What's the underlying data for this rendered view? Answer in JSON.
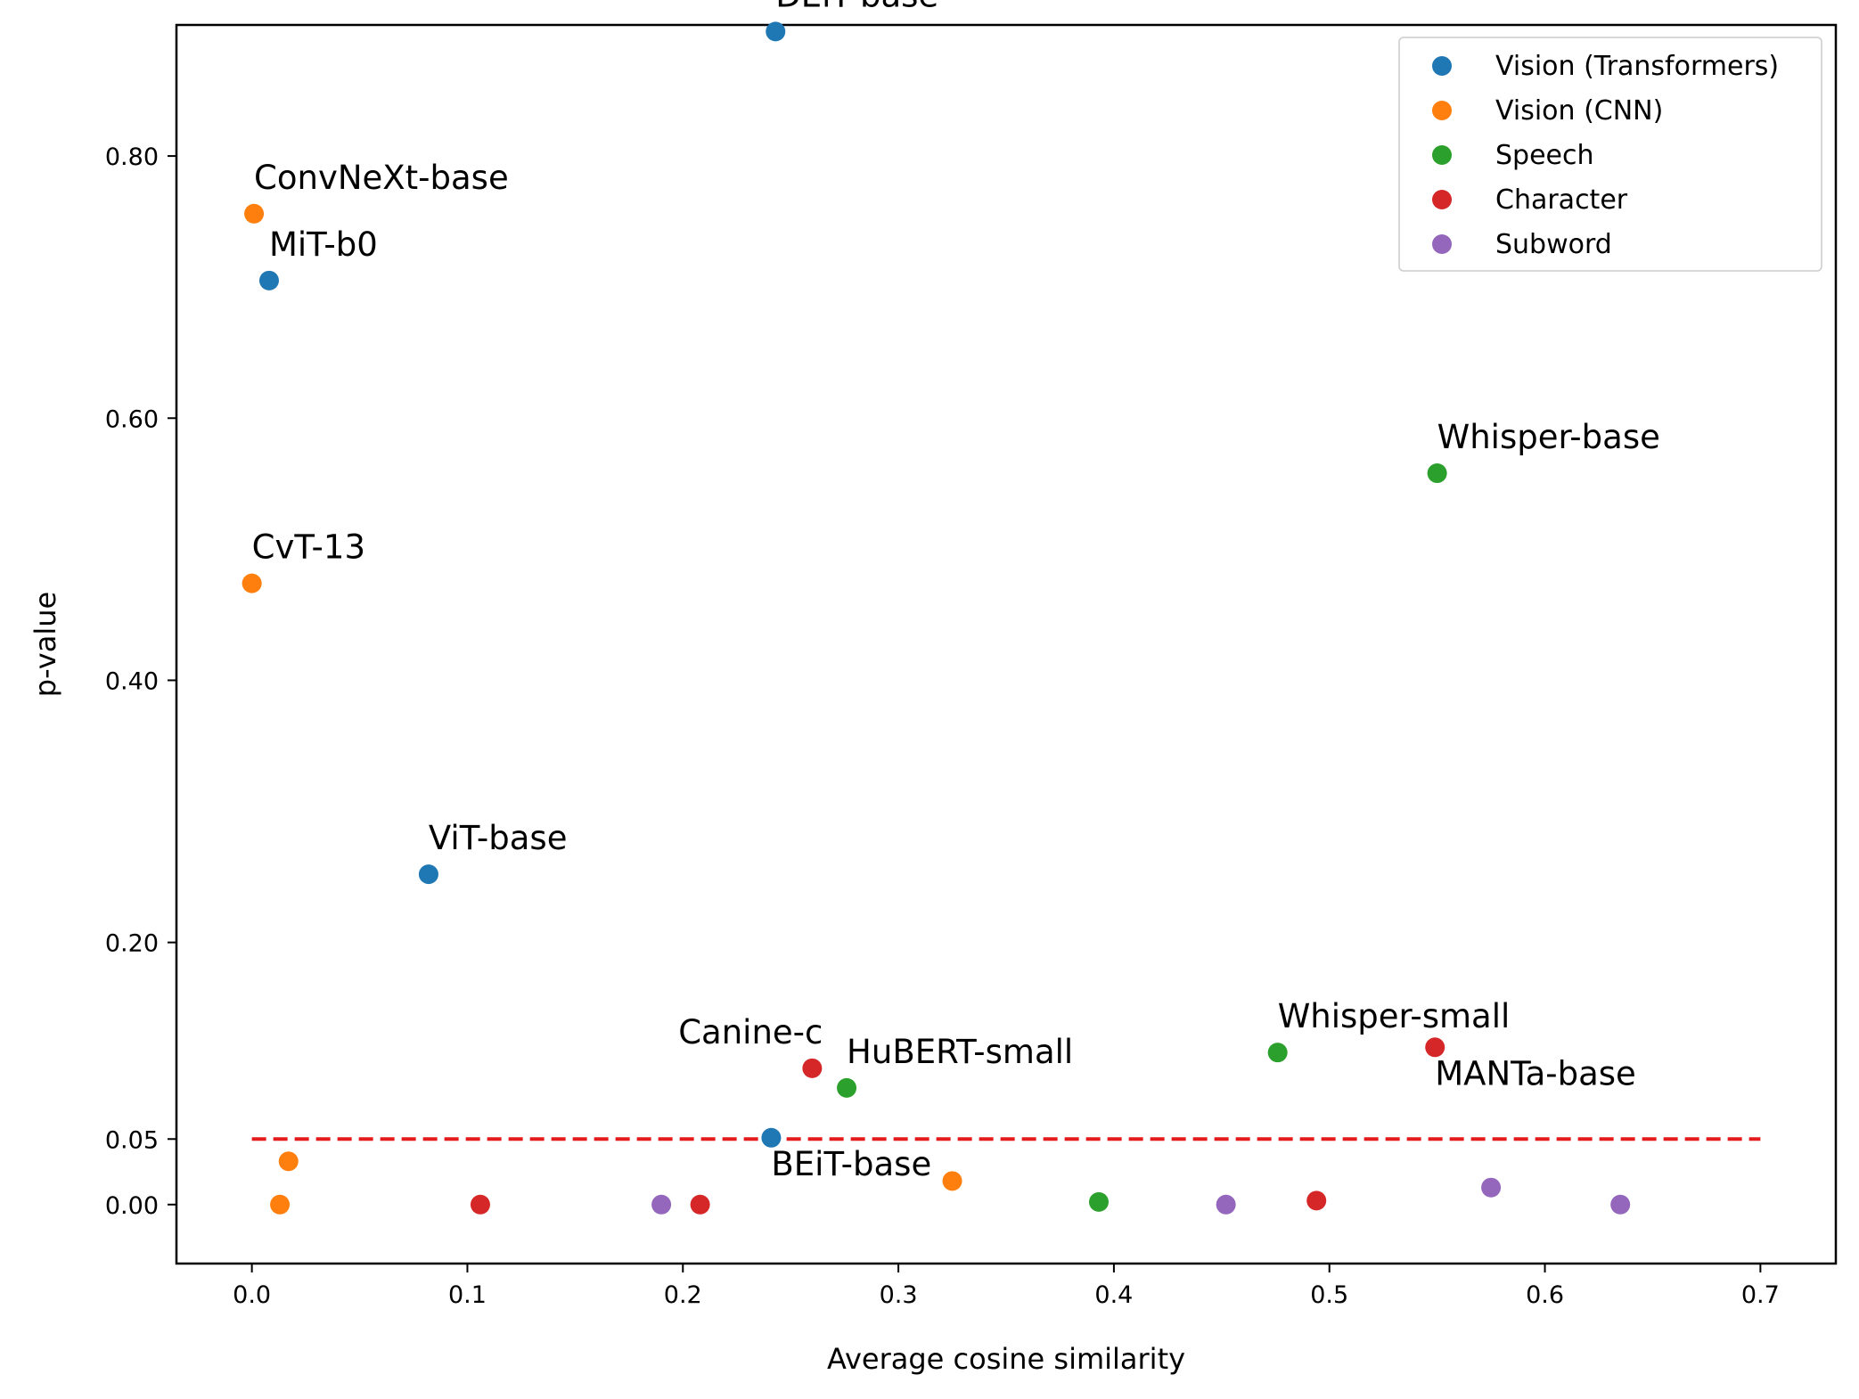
{
  "chart_data": {
    "type": "scatter",
    "xlabel": "Average cosine similarity",
    "ylabel": "p-value",
    "xlim": [
      -0.035,
      0.735
    ],
    "ylim": [
      -0.045,
      0.9
    ],
    "x_ticks": [
      0.0,
      0.1,
      0.2,
      0.3,
      0.4,
      0.5,
      0.6,
      0.7
    ],
    "x_tick_labels": [
      "0.0",
      "0.1",
      "0.2",
      "0.3",
      "0.4",
      "0.5",
      "0.6",
      "0.7"
    ],
    "y_ticks": [
      0.0,
      0.05,
      0.2,
      0.4,
      0.6,
      0.8
    ],
    "y_tick_labels": [
      "0.00",
      "0.05",
      "0.20",
      "0.40",
      "0.60",
      "0.80"
    ],
    "legend_position": "top-right",
    "threshold": {
      "y": 0.05,
      "x_range": [
        0.0,
        0.7
      ],
      "color": "#e41a1c",
      "style": "dashed"
    },
    "series": [
      {
        "name": "Vision (Transformers)",
        "color": "#1f77b4",
        "points": [
          {
            "x": 0.243,
            "y": 0.895,
            "label": "DEiT-base",
            "label_anchor": "above"
          },
          {
            "x": 0.008,
            "y": 0.705,
            "label": "MiT-b0",
            "label_anchor": "above"
          },
          {
            "x": 0.082,
            "y": 0.252,
            "label": "ViT-base",
            "label_anchor": "above"
          },
          {
            "x": 0.241,
            "y": 0.051,
            "label": "BEiT-base",
            "label_anchor": "below"
          }
        ]
      },
      {
        "name": "Vision (CNN)",
        "color": "#ff7f0e",
        "points": [
          {
            "x": 0.001,
            "y": 0.756,
            "label": "ConvNeXt-base",
            "label_anchor": "above"
          },
          {
            "x": 0.0,
            "y": 0.474,
            "label": "CvT-13",
            "label_anchor": "above"
          },
          {
            "x": 0.017,
            "y": 0.033,
            "label": ""
          },
          {
            "x": 0.013,
            "y": 0.0,
            "label": ""
          },
          {
            "x": 0.325,
            "y": 0.018,
            "label": ""
          }
        ]
      },
      {
        "name": "Speech",
        "color": "#2ca02c",
        "points": [
          {
            "x": 0.55,
            "y": 0.558,
            "label": "Whisper-base",
            "label_anchor": "above"
          },
          {
            "x": 0.476,
            "y": 0.116,
            "label": "Whisper-small",
            "label_anchor": "above"
          },
          {
            "x": 0.276,
            "y": 0.089,
            "label": "HuBERT-small",
            "label_anchor": "above"
          },
          {
            "x": 0.393,
            "y": 0.002,
            "label": ""
          }
        ]
      },
      {
        "name": "Character",
        "color": "#d62728",
        "points": [
          {
            "x": 0.26,
            "y": 0.104,
            "label": "Canine-c",
            "label_anchor": "above-left"
          },
          {
            "x": 0.549,
            "y": 0.12,
            "label": "MANTa-base",
            "label_anchor": "below"
          },
          {
            "x": 0.106,
            "y": 0.0,
            "label": ""
          },
          {
            "x": 0.208,
            "y": 0.0,
            "label": ""
          },
          {
            "x": 0.494,
            "y": 0.003,
            "label": ""
          }
        ]
      },
      {
        "name": "Subword",
        "color": "#9467bd",
        "points": [
          {
            "x": 0.19,
            "y": 0.0,
            "label": ""
          },
          {
            "x": 0.452,
            "y": 0.0,
            "label": ""
          },
          {
            "x": 0.575,
            "y": 0.013,
            "label": ""
          },
          {
            "x": 0.635,
            "y": 0.0,
            "label": ""
          }
        ]
      }
    ]
  }
}
